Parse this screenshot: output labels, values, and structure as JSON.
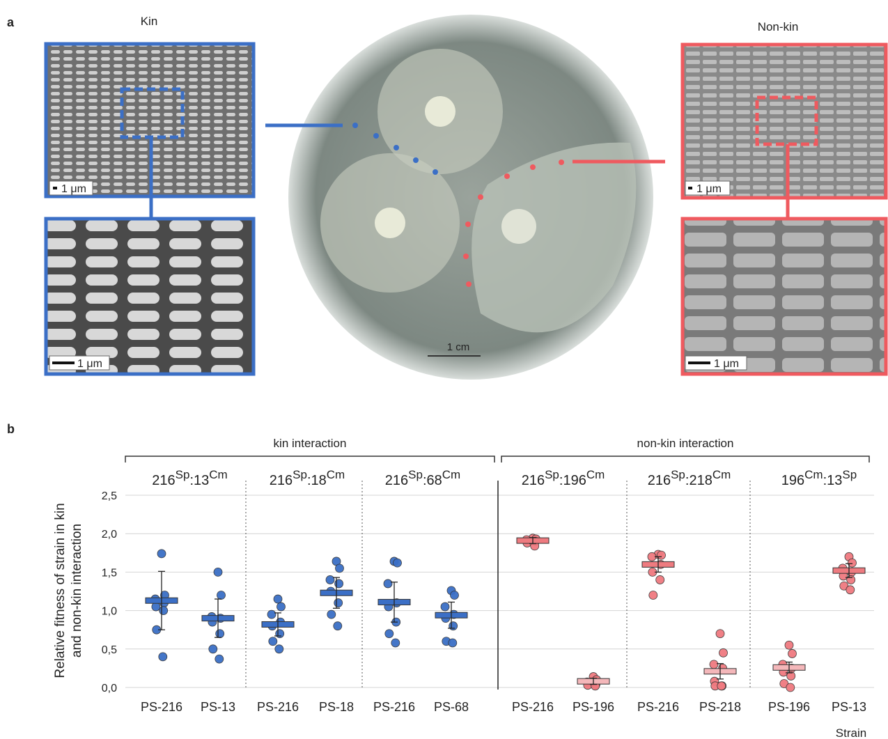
{
  "panel_a": {
    "label": "a",
    "kin_title": "Kin",
    "nonkin_title": "Non-kin",
    "scale_bars": [
      "1 μm",
      "1 μm",
      "1 μm",
      "1 μm"
    ],
    "plate_scale": "1 cm"
  },
  "chart_data": {
    "type": "dot",
    "panel_label": "b",
    "y_label": [
      "Relative fitness of strain in kin",
      "and non-kin interaction"
    ],
    "x_label": "Strain",
    "group_labels": [
      "kin interaction",
      "non-kin interaction"
    ],
    "pair_labels": [
      [
        "216",
        "Sp",
        ":13",
        "Cm"
      ],
      [
        "216",
        "Sp",
        ":18",
        "Cm"
      ],
      [
        "216",
        "Sp",
        ":68",
        "Cm"
      ],
      [
        "216",
        "Sp",
        ":196",
        "Cm"
      ],
      [
        "216",
        "Sp",
        ":218",
        "Cm"
      ],
      [
        "196",
        "Cm",
        ":13",
        "Sp"
      ]
    ],
    "categories": [
      "PS-216",
      "PS-13",
      "PS-216",
      "PS-18",
      "PS-216",
      "PS-68",
      "PS-216",
      "PS-196",
      "PS-216",
      "PS-218",
      "PS-196",
      "PS-13"
    ],
    "mean": [
      1.13,
      0.9,
      0.82,
      1.23,
      1.11,
      0.94,
      1.91,
      0.08,
      1.6,
      0.21,
      0.26,
      1.52
    ],
    "error": [
      0.38,
      0.25,
      0.15,
      0.2,
      0.26,
      0.17,
      0.04,
      0.04,
      0.1,
      0.1,
      0.07,
      0.09
    ],
    "points": [
      [
        1.74,
        1.2,
        1.15,
        1.1,
        1.05,
        1.0,
        0.75,
        0.4
      ],
      [
        1.5,
        1.2,
        0.92,
        0.9,
        0.85,
        0.7,
        0.5,
        0.37
      ],
      [
        1.15,
        1.05,
        0.95,
        0.85,
        0.8,
        0.7,
        0.6,
        0.5
      ],
      [
        1.64,
        1.55,
        1.4,
        1.35,
        1.25,
        1.1,
        0.95,
        0.8
      ],
      [
        1.64,
        1.62,
        1.35,
        1.1,
        1.05,
        0.85,
        0.7,
        0.58
      ],
      [
        1.26,
        1.2,
        1.05,
        0.95,
        0.9,
        0.8,
        0.6,
        0.58
      ],
      [
        1.94,
        1.93,
        1.92,
        1.9,
        1.88,
        1.84
      ],
      [
        0.14,
        0.1,
        0.07,
        0.04,
        0.03,
        0.02
      ],
      [
        1.73,
        1.72,
        1.7,
        1.6,
        1.5,
        1.4,
        1.2
      ],
      [
        0.7,
        0.45,
        0.3,
        0.25,
        0.08,
        0.02,
        0.02,
        0.02
      ],
      [
        0.55,
        0.44,
        0.3,
        0.25,
        0.2,
        0.15,
        0.05,
        0.0
      ],
      [
        1.7,
        1.62,
        1.55,
        1.5,
        1.45,
        1.4,
        1.32,
        1.27
      ]
    ],
    "bar_colors": [
      "#3b6fc6",
      "#3b6fc6",
      "#3b6fc6",
      "#3b6fc6",
      "#3b6fc6",
      "#3b6fc6",
      "#ee7b80",
      "#f4b7ba",
      "#ee7b80",
      "#f4b7ba",
      "#f4b7ba",
      "#ee7b80"
    ],
    "point_colors": [
      "#3b6fc6",
      "#3b6fc6",
      "#3b6fc6",
      "#3b6fc6",
      "#3b6fc6",
      "#3b6fc6",
      "#f07a80",
      "#f07a80",
      "#f07a80",
      "#f07a80",
      "#f07a80",
      "#f07a80"
    ],
    "ylim": [
      0,
      2.5
    ],
    "yticks": [
      {
        "value": 0,
        "label": "0,0"
      },
      {
        "value": 0.5,
        "label": "0,5"
      },
      {
        "value": 1,
        "label": "1,0"
      },
      {
        "value": 1.5,
        "label": "1,5"
      },
      {
        "value": 2,
        "label": "2,0"
      },
      {
        "value": 2.5,
        "label": "2,5"
      }
    ],
    "grid": true
  }
}
